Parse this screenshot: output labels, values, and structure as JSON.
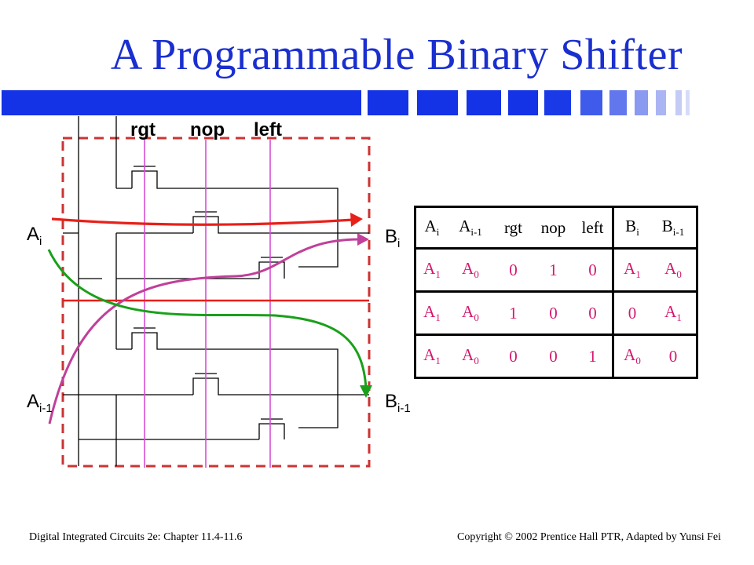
{
  "title": "A Programmable Binary Shifter",
  "colors": {
    "title": "#1a2fd0",
    "bar_blue": "#1432e6",
    "dashed_box": "#cc3333",
    "control_lines": "#d64fd6",
    "red_arrow": "#e8201a",
    "magenta_arrow": "#c0409a",
    "green_arrow": "#1aa01a",
    "table_values": "#d4196f"
  },
  "controls": {
    "rgt": "rgt",
    "nop": "nop",
    "left": "left"
  },
  "io": {
    "a_i": {
      "main": "A",
      "sub": "i"
    },
    "a_i1": {
      "main": "A",
      "sub": "i-1"
    },
    "b_i": {
      "main": "B",
      "sub": "i"
    },
    "b_i1": {
      "main": "B",
      "sub": "i-1"
    }
  },
  "table": {
    "headers": [
      {
        "main": "A",
        "sub": "i"
      },
      {
        "main": "A",
        "sub": "i-1"
      },
      {
        "main": "rgt",
        "sub": ""
      },
      {
        "main": "nop",
        "sub": ""
      },
      {
        "main": "left",
        "sub": ""
      },
      {
        "main": "B",
        "sub": "i"
      },
      {
        "main": "B",
        "sub": "i-1"
      }
    ],
    "rows": [
      [
        {
          "main": "A",
          "sub": "1"
        },
        {
          "main": "A",
          "sub": "0"
        },
        {
          "main": "0",
          "sub": ""
        },
        {
          "main": "1",
          "sub": ""
        },
        {
          "main": "0",
          "sub": ""
        },
        {
          "main": "A",
          "sub": "1"
        },
        {
          "main": "A",
          "sub": "0"
        }
      ],
      [
        {
          "main": "A",
          "sub": "1"
        },
        {
          "main": "A",
          "sub": "0"
        },
        {
          "main": "1",
          "sub": ""
        },
        {
          "main": "0",
          "sub": ""
        },
        {
          "main": "0",
          "sub": ""
        },
        {
          "main": "0",
          "sub": ""
        },
        {
          "main": "A",
          "sub": "1"
        }
      ],
      [
        {
          "main": "A",
          "sub": "1"
        },
        {
          "main": "A",
          "sub": "0"
        },
        {
          "main": "0",
          "sub": ""
        },
        {
          "main": "0",
          "sub": ""
        },
        {
          "main": "1",
          "sub": ""
        },
        {
          "main": "A",
          "sub": "0"
        },
        {
          "main": "0",
          "sub": ""
        }
      ]
    ]
  },
  "footer": {
    "left": "Digital Integrated Circuits 2e: Chapter 11.4-11.6",
    "right": "Copyright © 2002 Prentice Hall PTR, Adapted by Yunsi Fei"
  }
}
